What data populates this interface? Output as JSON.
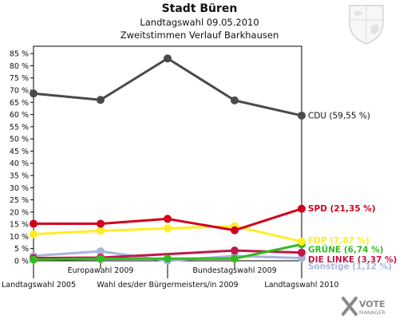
{
  "header": {
    "title": "Stadt Büren",
    "subtitle": "Landtagswahl 09.05.2010",
    "subtitle2": "Zweitstimmen Verlauf Barkhausen"
  },
  "watermark": {
    "brand": "VOTE",
    "sub": "MANAGER"
  },
  "chart_data": {
    "type": "line",
    "title": "Stadt Büren",
    "subtitle": "Landtagswahl 09.05.2010 — Zweitstimmen Verlauf Barkhausen",
    "xlabel": "",
    "ylabel": "",
    "ylim": [
      0,
      88
    ],
    "yticks": [
      0,
      5,
      10,
      15,
      20,
      25,
      30,
      35,
      40,
      45,
      50,
      55,
      60,
      65,
      70,
      75,
      80,
      85
    ],
    "ytick_suffix": " %",
    "grid": false,
    "x": [
      0,
      1,
      2,
      3,
      4
    ],
    "categories": [
      "Landtagswahl 2005",
      "Europawahl 2009",
      "Wahl des/der Bürgermeisters/in 2009",
      "Bundestagswahl 2009",
      "Landtagswahl 2010"
    ],
    "category_rows": [
      "bottom",
      "top",
      "bottom",
      "top",
      "bottom"
    ],
    "series": [
      {
        "name": "CDU",
        "label": "CDU (59,55 %)",
        "color": "#4a4a4a",
        "values": [
          68.6,
          66.0,
          83.0,
          65.8,
          59.55
        ]
      },
      {
        "name": "SPD",
        "label": "SPD (21,35 %)",
        "color": "#d0021b",
        "values": [
          15.2,
          15.2,
          17.2,
          12.5,
          21.35
        ]
      },
      {
        "name": "FDP",
        "label": "FDP (7,87 %)",
        "color": "#ffee22",
        "values": [
          10.9,
          12.3,
          13.3,
          14.2,
          7.87
        ]
      },
      {
        "name": "GRÜNE",
        "label": "GRÜNE (6,74 %)",
        "color": "#33bb22",
        "values": [
          0.5,
          0.8,
          0.9,
          0.9,
          6.74
        ]
      },
      {
        "name": "DIE LINKE",
        "label": "DIE LINKE (3,37 %)",
        "color": "#c0174a",
        "values": [
          1.1,
          1.3,
          null,
          4.2,
          3.37
        ]
      },
      {
        "name": "Sonstige",
        "label": "Sonstige (1,12 %)",
        "color": "#a8b4dd",
        "values": [
          2.0,
          3.9,
          0.0,
          2.0,
          1.12
        ]
      }
    ]
  }
}
